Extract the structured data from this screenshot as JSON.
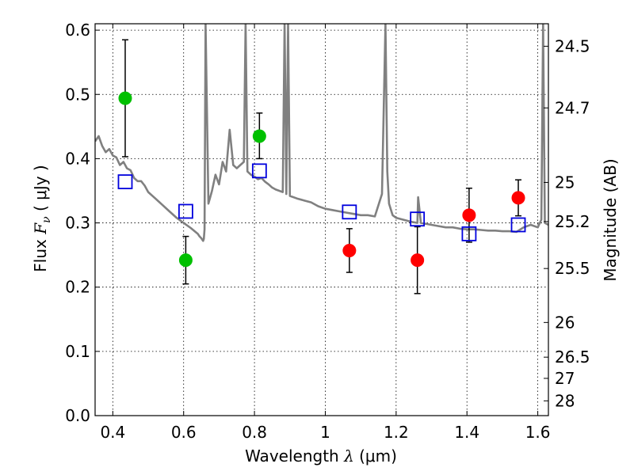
{
  "chart_data": {
    "type": "scatter",
    "xlabel": {
      "prefix": "Wavelength ",
      "symbol": "λ",
      "unit": " (μm)"
    },
    "ylabel": {
      "prefix": "Flux ",
      "symbol": "F",
      "subscript": "ν",
      "unit": " ( μJy )"
    },
    "y2label": "Magnitude (AB)",
    "xlim": [
      0.35,
      1.63
    ],
    "ylim": [
      0.0,
      0.61
    ],
    "grid": true,
    "x_ticks": [
      0.4,
      0.6,
      0.8,
      1.0,
      1.2,
      1.4,
      1.6
    ],
    "x_tick_labels": [
      "0.4",
      "0.6",
      "0.8",
      "1",
      "1.2",
      "1.4",
      "1.6"
    ],
    "y_ticks": [
      0.0,
      0.1,
      0.2,
      0.3,
      0.4,
      0.5,
      0.6
    ],
    "y_tick_labels": [
      "0.0",
      "0.1",
      "0.2",
      "0.3",
      "0.4",
      "0.5",
      "0.6"
    ],
    "mag_ticks": [
      {
        "label": "24.5",
        "flux": 0.575
      },
      {
        "label": "24.7",
        "flux": 0.479
      },
      {
        "label": "25",
        "flux": 0.363
      },
      {
        "label": "25.2",
        "flux": 0.302
      },
      {
        "label": "25.5",
        "flux": 0.229
      },
      {
        "label": "26",
        "flux": 0.145
      },
      {
        "label": "26.5",
        "flux": 0.091
      },
      {
        "label": "27",
        "flux": 0.058
      },
      {
        "label": "28",
        "flux": 0.023
      }
    ],
    "series": [
      {
        "marker": "circle",
        "color": "#00c000",
        "points": [
          {
            "x": 0.435,
            "y": 0.494,
            "ylo": 0.403,
            "yhi": 0.585
          },
          {
            "x": 0.606,
            "y": 0.242,
            "ylo": 0.205,
            "yhi": 0.279
          },
          {
            "x": 0.814,
            "y": 0.435,
            "ylo": 0.4,
            "yhi": 0.471
          }
        ]
      },
      {
        "marker": "circle",
        "color": "#ff0000",
        "points": [
          {
            "x": 1.068,
            "y": 0.257,
            "ylo": 0.223,
            "yhi": 0.291
          },
          {
            "x": 1.26,
            "y": 0.242,
            "ylo": 0.19,
            "yhi": 0.294
          },
          {
            "x": 1.406,
            "y": 0.312,
            "ylo": 0.27,
            "yhi": 0.354
          },
          {
            "x": 1.545,
            "y": 0.339,
            "ylo": 0.311,
            "yhi": 0.367
          }
        ]
      },
      {
        "marker": "open-square",
        "color": "#0000dd",
        "points": [
          {
            "x": 0.435,
            "y": 0.364
          },
          {
            "x": 0.606,
            "y": 0.318
          },
          {
            "x": 0.814,
            "y": 0.381
          },
          {
            "x": 1.068,
            "y": 0.317
          },
          {
            "x": 1.26,
            "y": 0.306
          },
          {
            "x": 1.406,
            "y": 0.283
          },
          {
            "x": 1.545,
            "y": 0.297
          }
        ]
      }
    ],
    "model_spectrum": {
      "color": "#808080",
      "x": [
        0.35,
        0.36,
        0.37,
        0.38,
        0.39,
        0.4,
        0.41,
        0.42,
        0.43,
        0.44,
        0.45,
        0.46,
        0.47,
        0.48,
        0.49,
        0.5,
        0.52,
        0.54,
        0.56,
        0.58,
        0.6,
        0.62,
        0.64,
        0.645,
        0.65,
        0.655,
        0.657,
        0.659,
        0.662,
        0.67,
        0.68,
        0.69,
        0.7,
        0.71,
        0.72,
        0.73,
        0.74,
        0.75,
        0.76,
        0.77,
        0.775,
        0.78,
        0.79,
        0.8,
        0.81,
        0.82,
        0.83,
        0.84,
        0.85,
        0.86,
        0.87,
        0.88,
        0.885,
        0.89,
        0.895,
        0.9,
        0.92,
        0.94,
        0.96,
        0.98,
        1.0,
        1.02,
        1.04,
        1.06,
        1.08,
        1.1,
        1.12,
        1.14,
        1.16,
        1.17,
        1.175,
        1.18,
        1.19,
        1.2,
        1.22,
        1.24,
        1.26,
        1.262,
        1.27,
        1.3,
        1.32,
        1.34,
        1.36,
        1.38,
        1.4,
        1.42,
        1.44,
        1.46,
        1.48,
        1.5,
        1.52,
        1.54,
        1.56,
        1.58,
        1.6,
        1.61,
        1.615,
        1.62,
        1.63
      ],
      "y": [
        0.427,
        0.435,
        0.42,
        0.41,
        0.415,
        0.405,
        0.402,
        0.39,
        0.395,
        0.385,
        0.382,
        0.37,
        0.365,
        0.365,
        0.358,
        0.348,
        0.338,
        0.328,
        0.318,
        0.308,
        0.3,
        0.292,
        0.283,
        0.279,
        0.276,
        0.272,
        0.275,
        0.29,
        0.61,
        0.33,
        0.35,
        0.375,
        0.36,
        0.395,
        0.38,
        0.445,
        0.39,
        0.385,
        0.39,
        0.395,
        0.61,
        0.38,
        0.375,
        0.372,
        0.368,
        0.37,
        0.364,
        0.36,
        0.355,
        0.352,
        0.35,
        0.348,
        0.61,
        0.345,
        0.61,
        0.342,
        0.338,
        0.335,
        0.332,
        0.326,
        0.322,
        0.32,
        0.318,
        0.316,
        0.314,
        0.312,
        0.312,
        0.31,
        0.345,
        0.61,
        0.38,
        0.33,
        0.312,
        0.308,
        0.305,
        0.302,
        0.3,
        0.34,
        0.3,
        0.297,
        0.295,
        0.293,
        0.293,
        0.291,
        0.29,
        0.29,
        0.289,
        0.288,
        0.288,
        0.287,
        0.287,
        0.286,
        0.293,
        0.297,
        0.293,
        0.305,
        0.61,
        0.3,
        0.297
      ]
    }
  }
}
